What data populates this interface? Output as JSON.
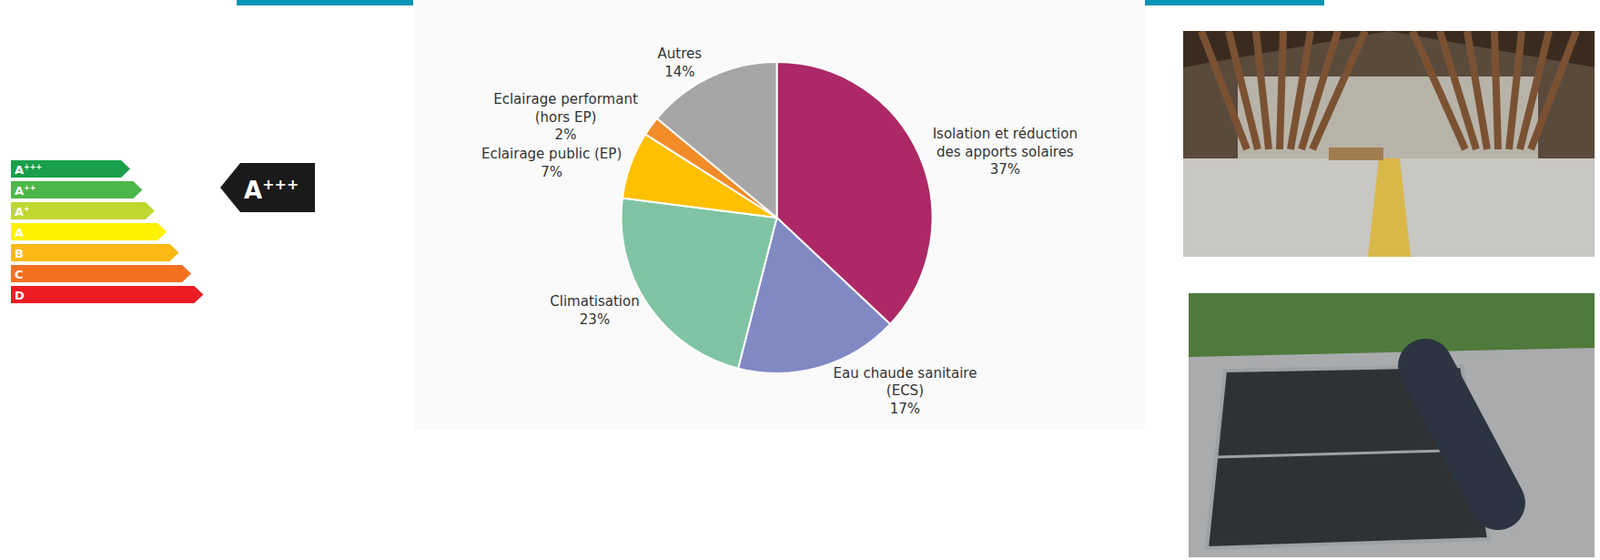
{
  "chart_data": {
    "type": "pie",
    "categories": [
      "Isolation et réduction des apports solaires",
      "Eau chaude sanitaire (ECS)",
      "Climatisation",
      "Eclairage public (EP)",
      "Eclairage performant (hors EP)",
      "Autres"
    ],
    "values": [
      37,
      17,
      23,
      7,
      2,
      14
    ],
    "value_labels": [
      "37%",
      "17%",
      "23%",
      "7%",
      "2%",
      "14%"
    ],
    "colors": [
      "#ad2866",
      "#8189c3",
      "#80c4a4",
      "#ffc000",
      "#f28c28",
      "#a6a6a6"
    ],
    "data_labels": true
  },
  "energy_label": {
    "classes": [
      {
        "label": "A+++",
        "color": "#1aa04b"
      },
      {
        "label": "A++",
        "color": "#4cb748"
      },
      {
        "label": "A+",
        "color": "#bfd730"
      },
      {
        "label": "A",
        "color": "#fff200"
      },
      {
        "label": "B",
        "color": "#fdb913"
      },
      {
        "label": "C",
        "color": "#f37021"
      },
      {
        "label": "D",
        "color": "#ed1c24"
      }
    ],
    "rating": "A+++"
  }
}
